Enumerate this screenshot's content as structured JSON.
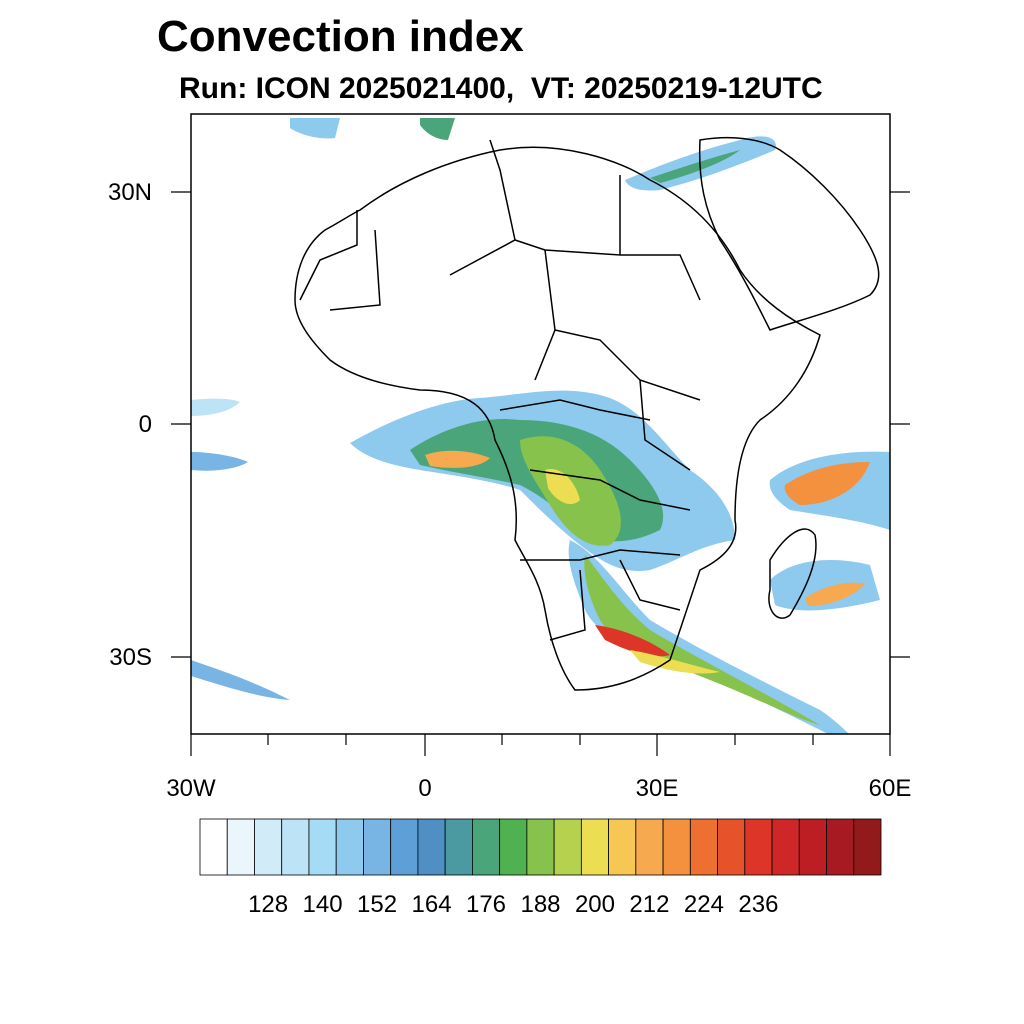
{
  "title": "Convection index",
  "subtitle": "Run: ICON 2025021400,  VT: 20250219-12UTC",
  "map": {
    "lon_range": [
      -30,
      60
    ],
    "lat_range": [
      -40,
      40
    ],
    "lat_labels": [
      "30N",
      "0",
      "30S"
    ],
    "lon_labels": [
      "30W",
      "0",
      "30E",
      "60E"
    ]
  },
  "colorbar": {
    "labels": [
      "128",
      "140",
      "152",
      "164",
      "176",
      "188",
      "200",
      "212",
      "224",
      "236"
    ],
    "colors": [
      "#ffffff",
      "#eaf5fc",
      "#d2ebf8",
      "#bde3f6",
      "#a5dbf5",
      "#8ec9ee",
      "#78b4e4",
      "#5f9fd7",
      "#4f8fc4",
      "#4b99a1",
      "#4aa67a",
      "#4fb14f",
      "#86c24c",
      "#b4d24e",
      "#ecdd52",
      "#f6c853",
      "#f6a94f",
      "#f3913f",
      "#ee7030",
      "#e6532a",
      "#dd3629",
      "#cf2727",
      "#bd1e24",
      "#a81a21",
      "#921a1b"
    ]
  }
}
